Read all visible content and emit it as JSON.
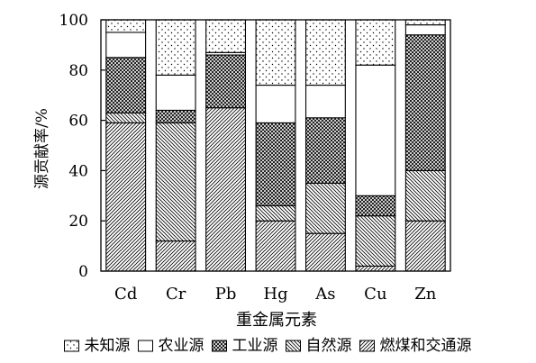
{
  "chart_data": {
    "type": "bar",
    "stacked": true,
    "categories": [
      "Cd",
      "Cr",
      "Pb",
      "Hg",
      "As",
      "Cu",
      "Zn"
    ],
    "series": [
      {
        "name": "燃煤和交通源",
        "pattern": "hatch-forward",
        "values": [
          59,
          12,
          65,
          20,
          15,
          2,
          20
        ]
      },
      {
        "name": "自然源",
        "pattern": "hatch-backward",
        "values": [
          4,
          47,
          0,
          6,
          20,
          20,
          20
        ]
      },
      {
        "name": "工业源",
        "pattern": "crosshatch",
        "values": [
          22,
          5,
          21,
          33,
          26,
          8,
          54
        ]
      },
      {
        "name": "农业源",
        "pattern": "blank",
        "values": [
          10,
          14,
          1,
          15,
          13,
          52,
          4
        ]
      },
      {
        "name": "未知源",
        "pattern": "dots",
        "values": [
          5,
          22,
          13,
          26,
          26,
          18,
          2
        ]
      }
    ],
    "legend_order": [
      4,
      3,
      2,
      1,
      0
    ],
    "title": "",
    "xlabel": "重金属元素",
    "ylabel": "源贡献率/%",
    "ylim": [
      0,
      100
    ],
    "yticks": [
      0,
      20,
      40,
      60,
      80,
      100
    ],
    "grid": false,
    "legend_position": "bottom"
  }
}
